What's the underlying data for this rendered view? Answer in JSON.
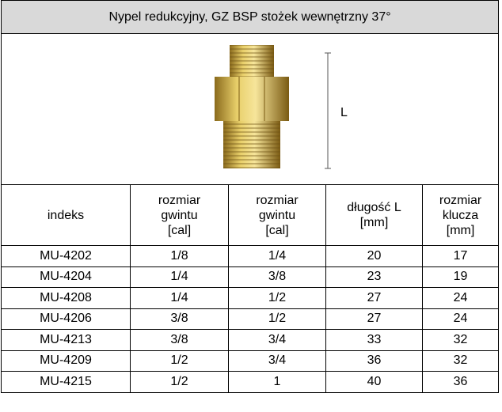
{
  "title": "Nypel redukcyjny, GZ BSP stożek wewnętrzny 37°",
  "image_label": "L",
  "table": {
    "header": [
      [
        "indeks"
      ],
      [
        "rozmiar",
        "gwintu",
        "[cal]"
      ],
      [
        "rozmiar",
        "gwintu",
        "[cal]"
      ],
      [
        "długość L",
        "[mm]"
      ],
      [
        "rozmiar",
        "klucza",
        "[mm]"
      ]
    ],
    "rows": [
      [
        "MU-4202",
        "1/8",
        "1/4",
        "20",
        "17"
      ],
      [
        "MU-4204",
        "1/4",
        "3/8",
        "23",
        "19"
      ],
      [
        "MU-4208",
        "1/4",
        "1/2",
        "27",
        "24"
      ],
      [
        "MU-4206",
        "3/8",
        "1/2",
        "27",
        "24"
      ],
      [
        "MU-4213",
        "3/8",
        "3/4",
        "33",
        "32"
      ],
      [
        "MU-4209",
        "1/2",
        "3/4",
        "36",
        "32"
      ],
      [
        "MU-4215",
        "1/2",
        "1",
        "40",
        "36"
      ]
    ]
  }
}
